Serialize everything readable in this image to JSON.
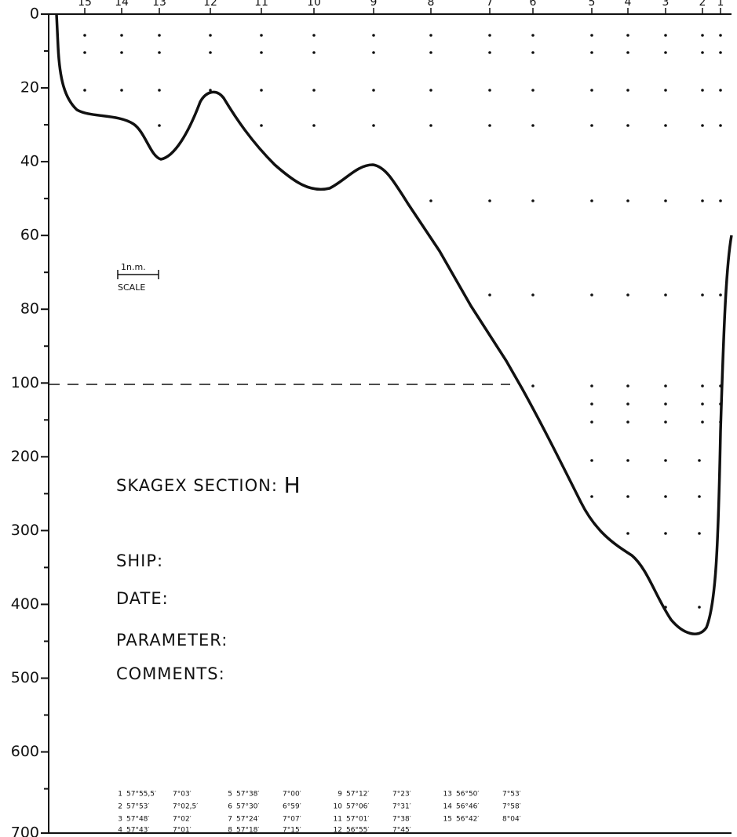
{
  "stations": [
    "15",
    "14",
    "13",
    "12",
    "11",
    "10",
    "9",
    "8",
    "7",
    "6",
    "5",
    "4",
    "3",
    "2",
    "1"
  ],
  "y_axis": {
    "ticks": [
      "0",
      "20",
      "40",
      "60",
      "80",
      "100",
      "200",
      "300",
      "400",
      "500",
      "600",
      "700"
    ]
  },
  "scale": {
    "length": "1n.m.",
    "label": "SCALE"
  },
  "title": "SKAGEX SECTION:",
  "section": "H",
  "fields": [
    "SHIP:",
    "DATE:",
    "PARAMETER:",
    "COMMENTS:"
  ],
  "positions": [
    {
      "number": "1",
      "lat": "57°55,5′",
      "lon": "7°03′"
    },
    {
      "number": "2",
      "lat": "57°53′",
      "lon": "7°02,5′"
    },
    {
      "number": "3",
      "lat": "57°48′",
      "lon": "7°02′"
    },
    {
      "number": "4",
      "lat": "57°43′",
      "lon": "7°01′"
    },
    {
      "number": "5",
      "lat": "57°38′",
      "lon": "7°00′"
    },
    {
      "number": "6",
      "lat": "57°30′",
      "lon": "6°59′"
    },
    {
      "number": "7",
      "lat": "57°24′",
      "lon": "7°07′"
    },
    {
      "number": "8",
      "lat": "57°18′",
      "lon": "7°15′"
    },
    {
      "number": "9",
      "lat": "57°12′",
      "lon": "7°23′"
    },
    {
      "number": "10",
      "lat": "57°06′",
      "lon": "7°31′"
    },
    {
      "number": "11",
      "lat": "57°01′",
      "lon": "7°38′"
    },
    {
      "number": "12",
      "lat": "56°55′",
      "lon": "7°45′"
    },
    {
      "number": "13",
      "lat": "56°50′",
      "lon": "7°53′"
    },
    {
      "number": "14",
      "lat": "56°46′",
      "lon": "7°58′"
    },
    {
      "number": "15",
      "lat": "56°42′",
      "lon": "8°04′"
    }
  ]
}
